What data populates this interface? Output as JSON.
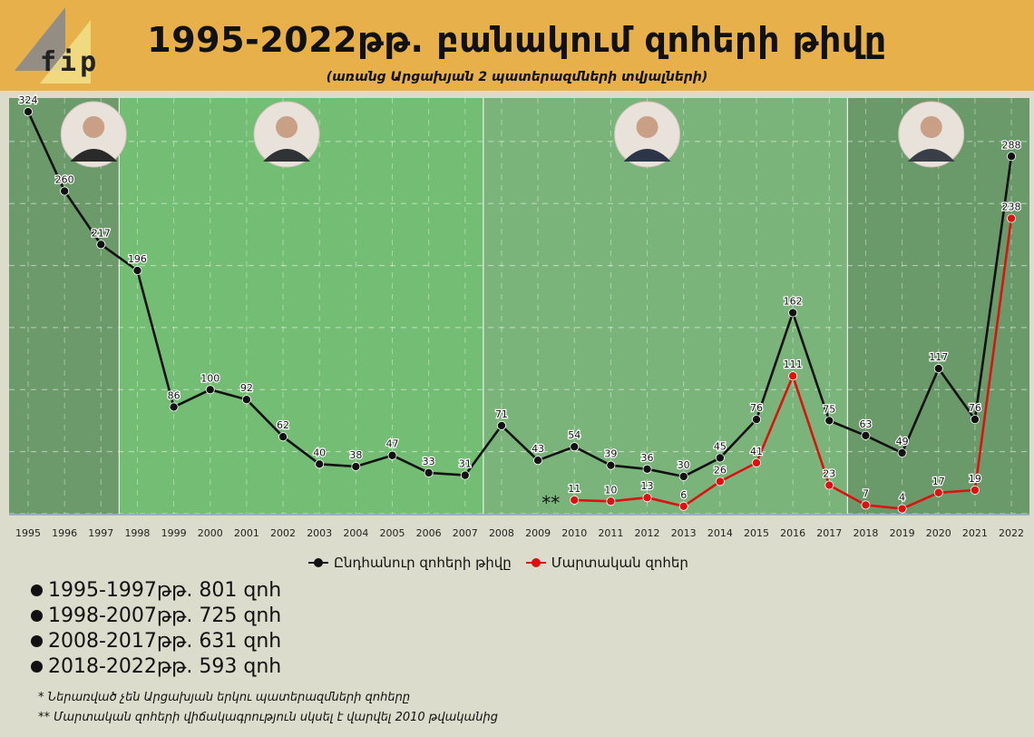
{
  "header": {
    "title": "1995-2022թթ. բանակում զոհերի թիվը",
    "subtitle": "(առանց Արցախյան 2 պատերազմների տվյալների)",
    "logo_text": "fip",
    "accent_color": "#e8b04a"
  },
  "chart_data": {
    "type": "line",
    "x": [
      "1995",
      "1996",
      "1997",
      "1998",
      "1999",
      "2000",
      "2001",
      "2002",
      "2003",
      "2004",
      "2005",
      "2006",
      "2007",
      "2008",
      "2009",
      "2010",
      "2011",
      "2012",
      "2013",
      "2014",
      "2015",
      "2016",
      "2017",
      "2018",
      "2019",
      "2020",
      "2021",
      "2022"
    ],
    "series": [
      {
        "name": "Ընդհանուր զոհերի թիվը",
        "color": "#111111",
        "values": [
          324,
          260,
          217,
          196,
          86,
          100,
          92,
          62,
          40,
          38,
          47,
          33,
          31,
          71,
          43,
          54,
          39,
          36,
          30,
          45,
          76,
          162,
          75,
          63,
          49,
          117,
          76,
          288
        ]
      },
      {
        "name": "Մարտական զոհեր",
        "color": "#dd1111",
        "values": [
          null,
          null,
          null,
          null,
          null,
          null,
          null,
          null,
          null,
          null,
          null,
          null,
          null,
          null,
          null,
          11,
          10,
          13,
          6,
          26,
          41,
          111,
          23,
          7,
          4,
          17,
          19,
          238
        ]
      }
    ],
    "ylim": [
      0,
      335
    ],
    "grid": true,
    "legend_position": "bottom",
    "annotation": "**",
    "periods": [
      {
        "from": "1995",
        "to": "1997",
        "color": "#6c9a6a"
      },
      {
        "from": "1998",
        "to": "2007",
        "color": "#74bd74"
      },
      {
        "from": "2008",
        "to": "2017",
        "color": "#7bb47b"
      },
      {
        "from": "2018",
        "to": "2022",
        "color": "#6a9a6a"
      }
    ],
    "portrait_icons": [
      "portrait-icon-1",
      "portrait-icon-2",
      "portrait-icon-3",
      "portrait-icon-4"
    ]
  },
  "totals": [
    "1995-1997թթ. 801 զոհ",
    "1998-2007թթ. 725 զոհ",
    "2008-2017թթ. 631 զոհ",
    "2018-2022թթ. 593 զոհ"
  ],
  "notes": [
    "* Ներառված չեն Արցախյան երկու պատերազմների զոհերը",
    "** Մարտական զոհերի վիճակագրություն սկսել է վարվել 2010 թվականից"
  ]
}
